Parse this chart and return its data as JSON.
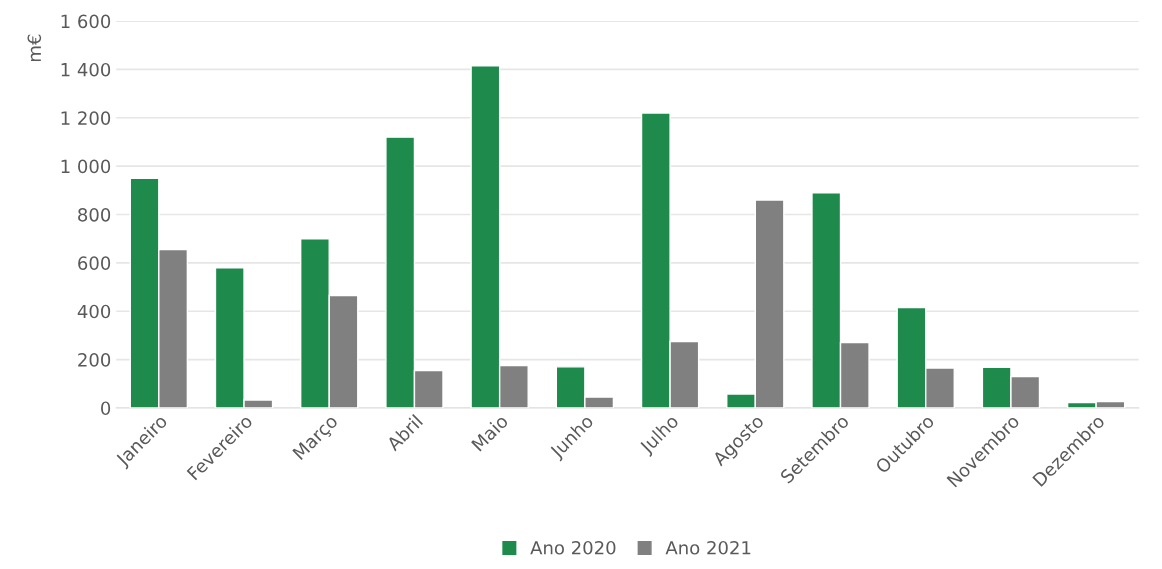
{
  "chart_data": {
    "type": "bar",
    "ylabel": "m€",
    "categories": [
      "Janeiro",
      "Fevereiro",
      "Março",
      "Abril",
      "Maio",
      "Junho",
      "Julho",
      "Agosto",
      "Setembro",
      "Outubro",
      "Novembro",
      "Dezembro"
    ],
    "series": [
      {
        "name": "Ano 2020",
        "color": "#1e8a4c",
        "values": [
          950,
          580,
          700,
          1120,
          1415,
          170,
          1220,
          58,
          890,
          415,
          168,
          22
        ]
      },
      {
        "name": "Ano 2021",
        "color": "#808080",
        "values": [
          655,
          33,
          465,
          155,
          175,
          45,
          275,
          860,
          270,
          165,
          130,
          27
        ]
      }
    ],
    "ylim": [
      0,
      1600
    ],
    "yticks": [
      0,
      200,
      400,
      600,
      800,
      {
        "value": 1000,
        "label": "1 000"
      },
      {
        "value": 1200,
        "label": "1 200"
      },
      {
        "value": 1400,
        "label": "1 400"
      },
      {
        "value": 1600,
        "label": "1 600"
      }
    ],
    "grid": "y",
    "legend": "bottom"
  }
}
